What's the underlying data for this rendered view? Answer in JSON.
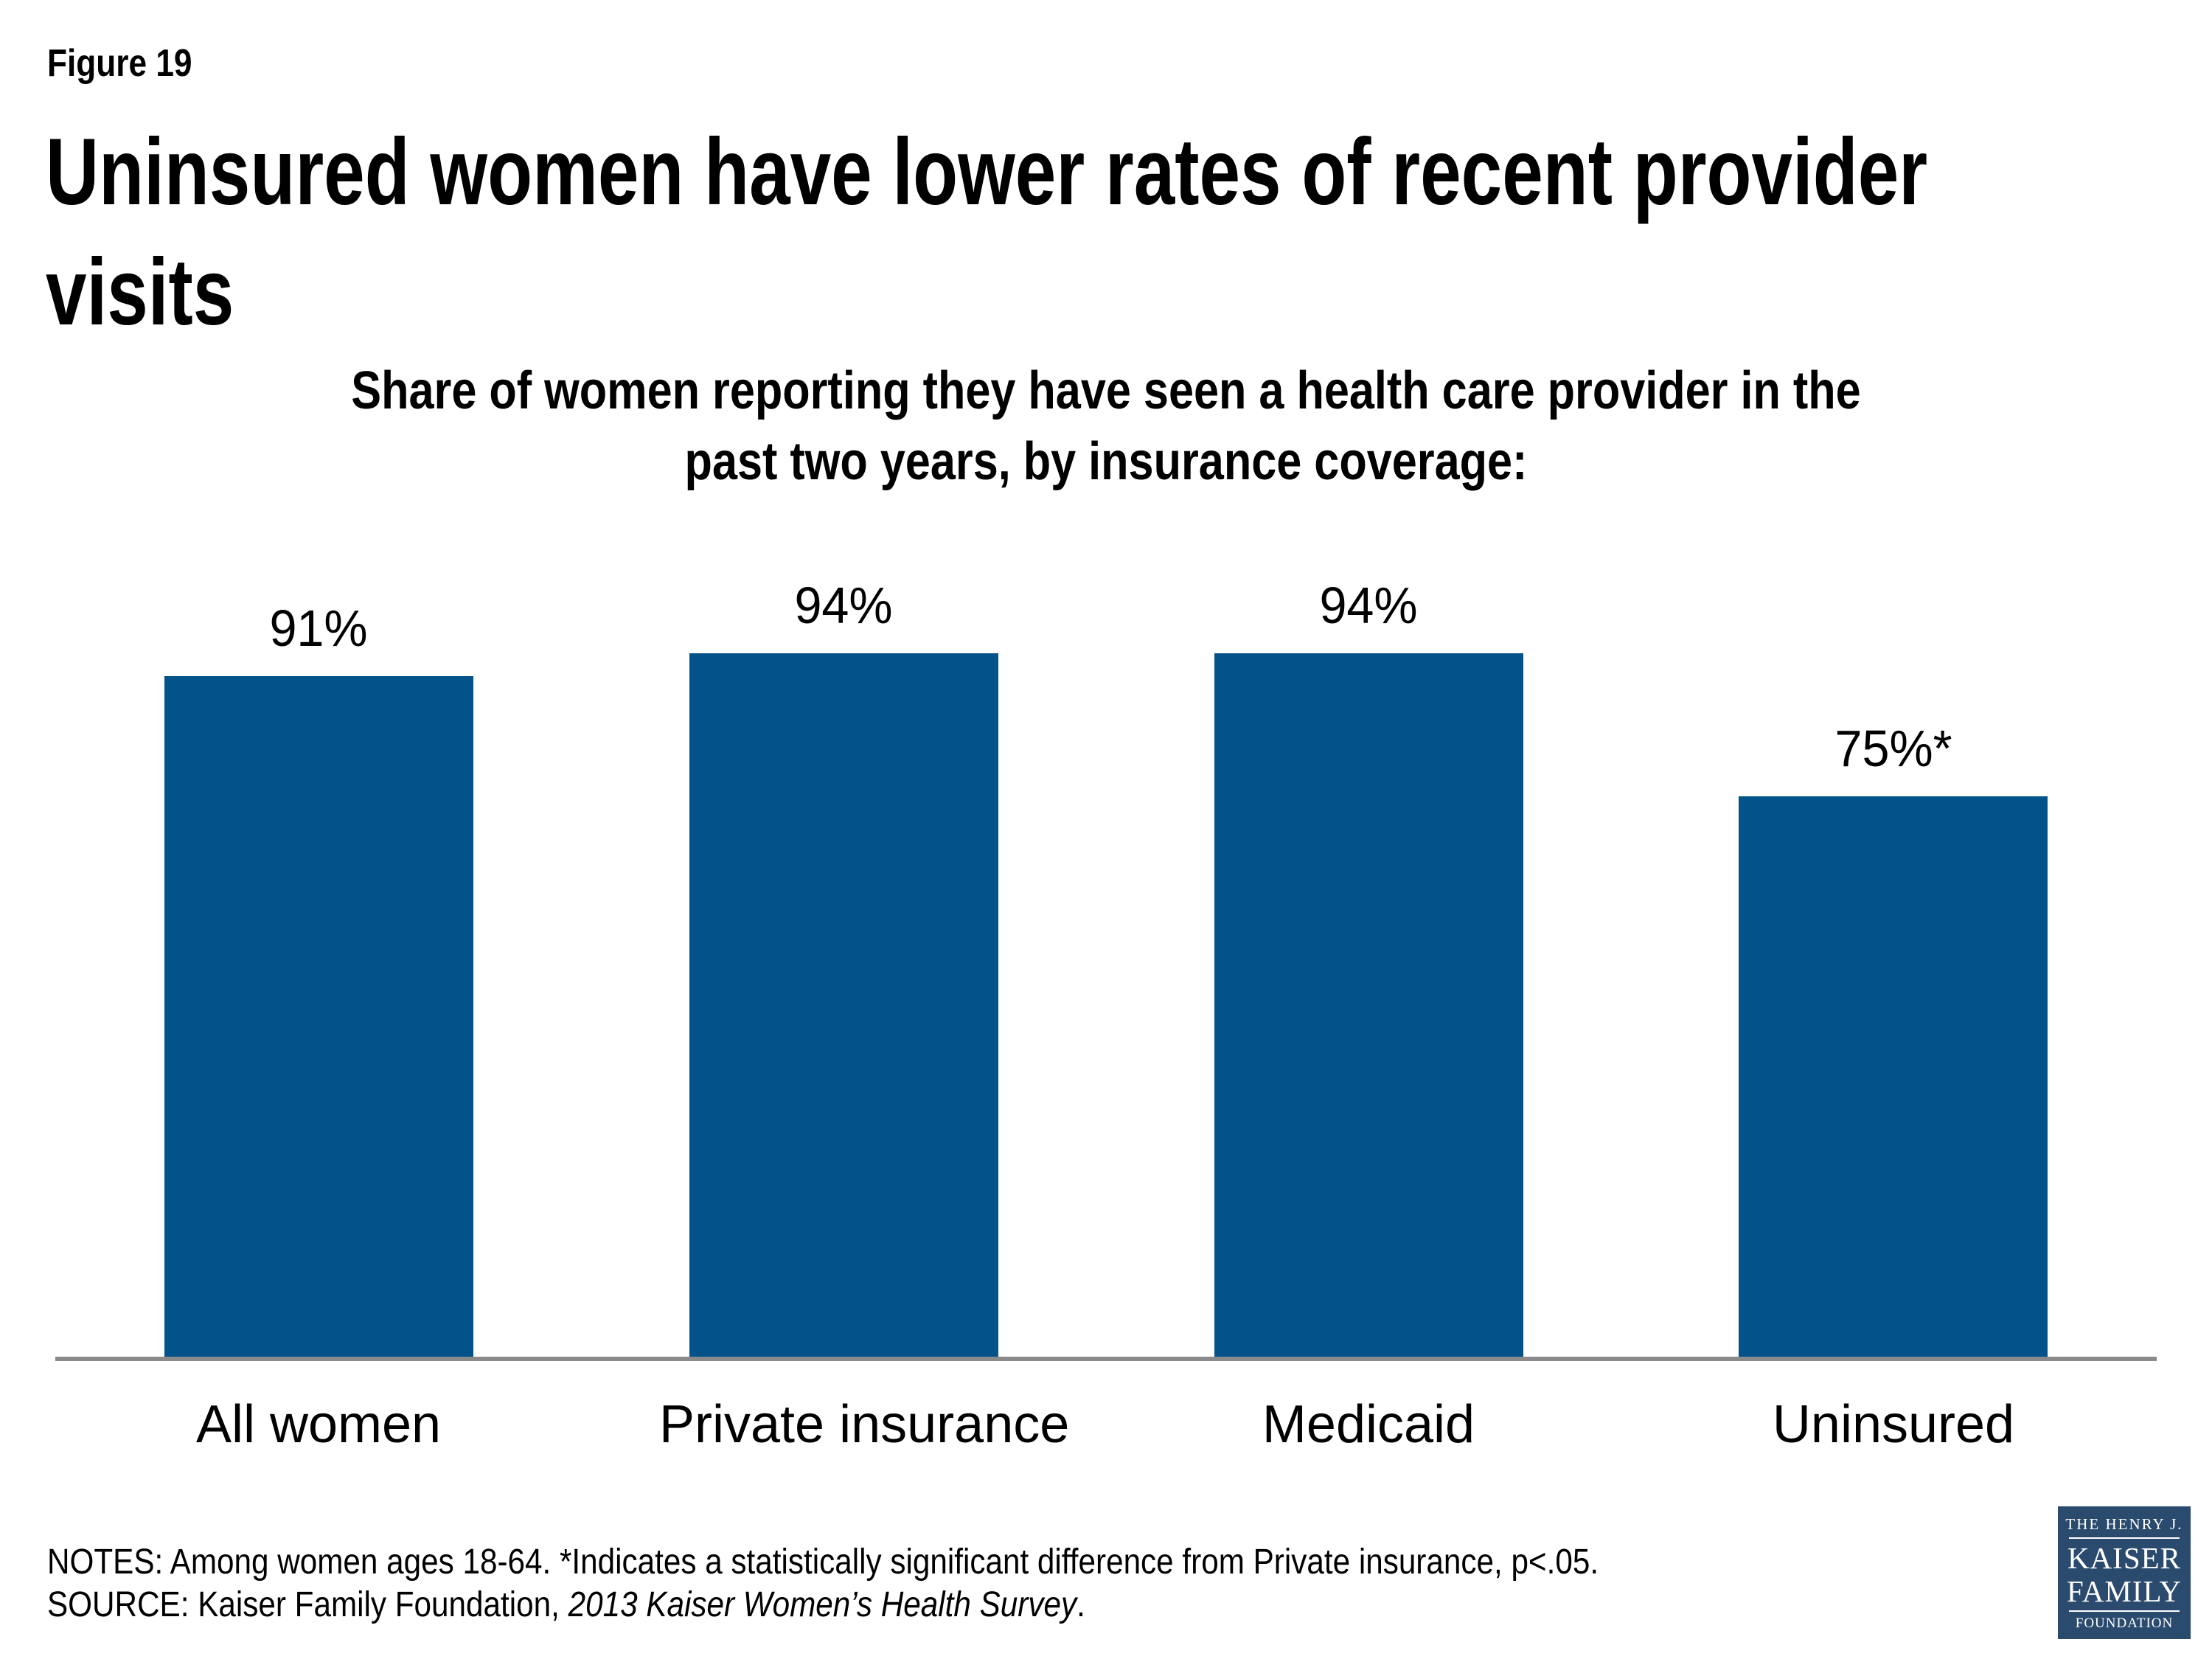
{
  "figure_label": "Figure 19",
  "title": {
    "lines": [
      "Uninsured women have lower rates of recent provider",
      "visits"
    ]
  },
  "subtitle": {
    "lines": [
      "Share of women reporting they have seen a health care provider in the",
      "past two years, by insurance coverage:"
    ]
  },
  "chart_data": {
    "type": "bar",
    "title": "Share of women reporting they have seen a health care provider in the past two years, by insurance coverage:",
    "categories": [
      "All women",
      "Private insurance",
      "Medicaid",
      "Uninsured"
    ],
    "values": [
      91,
      94,
      94,
      75
    ],
    "value_labels": [
      "91%",
      "94%",
      "94%",
      "75%*"
    ],
    "xlabel": "",
    "ylabel": "",
    "ylim": [
      0,
      100
    ],
    "grid": false,
    "legend": false,
    "bar_color": "#03538A",
    "axis_line_color": "#8A8A8A",
    "label_color": "#000000"
  },
  "notes": {
    "line1": "NOTES: Among women ages 18-64. *Indicates a statistically significant difference from Private insurance, p<.05.",
    "source_prefix": "SOURCE: Kaiser Family Foundation, ",
    "source_italic": "2013 Kaiser Women’s Health Survey",
    "source_suffix": "."
  },
  "logo": {
    "bg_color": "#2A4A6E",
    "line1": "THE HENRY J.",
    "line2": "KAISER",
    "line3": "FAMILY",
    "line4": "FOUNDATION"
  }
}
